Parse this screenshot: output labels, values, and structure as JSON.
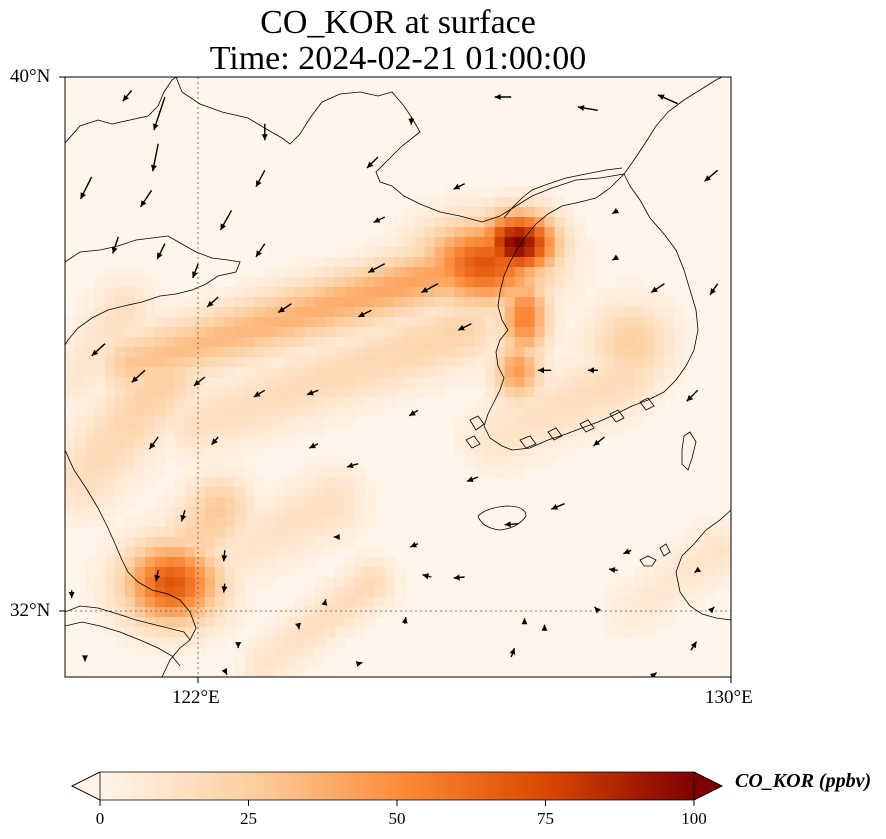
{
  "title": {
    "line1": "CO_KOR at surface",
    "line2": "Time: 2024-02-21 01:00:00"
  },
  "axes": {
    "y_ticks": [
      "40°N",
      "32°N"
    ],
    "x_ticks": [
      "122°E",
      "130°E"
    ],
    "lon_range": [
      120,
      130
    ],
    "lat_range": [
      31,
      40
    ],
    "gridline_lon": 122,
    "gridline_lat": 32
  },
  "colorbar": {
    "label": "CO_KOR (ppbv)",
    "ticks": [
      "0",
      "25",
      "50",
      "75",
      "100"
    ],
    "range": [
      0,
      100
    ],
    "extend": "both",
    "colormap": [
      "#fff5eb",
      "#fdd0a2",
      "#fd8d3c",
      "#d94801",
      "#7f0000"
    ]
  },
  "chart_data": {
    "type": "heatmap",
    "variable": "CO_KOR",
    "units": "ppbv",
    "vmin": 0,
    "vmax": 100,
    "hotspots": [
      {
        "lon": 126.8,
        "lat": 37.5,
        "value": 100,
        "sx": 0.55,
        "sy": 0.45
      },
      {
        "lon": 126.3,
        "lat": 37.2,
        "value": 70,
        "sx": 0.9,
        "sy": 0.6
      },
      {
        "lon": 121.6,
        "lat": 32.4,
        "value": 70,
        "sx": 0.7,
        "sy": 0.6
      },
      {
        "lon": 126.9,
        "lat": 36.4,
        "value": 55,
        "sx": 0.35,
        "sy": 0.6
      },
      {
        "lon": 126.8,
        "lat": 35.6,
        "value": 45,
        "sx": 0.35,
        "sy": 0.45
      },
      {
        "lon": 128.5,
        "lat": 36.0,
        "value": 25,
        "sx": 0.6,
        "sy": 0.6
      }
    ],
    "plumes": [
      {
        "from": [
          126.5,
          37.3
        ],
        "to": [
          121.0,
          35.7
        ],
        "value": 45,
        "width": 0.45
      },
      {
        "from": [
          121.5,
          35.5
        ],
        "to": [
          120.3,
          34.0
        ],
        "value": 25,
        "width": 0.55
      },
      {
        "from": [
          126.0,
          36.2
        ],
        "to": [
          122.0,
          34.8
        ],
        "value": 22,
        "width": 0.5
      },
      {
        "from": [
          122.3,
          33.5
        ],
        "to": [
          121.5,
          32.5
        ],
        "value": 28,
        "width": 0.5
      },
      {
        "from": [
          128.4,
          35.5
        ],
        "to": [
          126.5,
          34.6
        ],
        "value": 18,
        "width": 0.5
      },
      {
        "from": [
          124.0,
          33.6
        ],
        "to": [
          122.0,
          32.6
        ],
        "value": 15,
        "width": 0.5
      },
      {
        "from": [
          124.6,
          32.4
        ],
        "to": [
          123.0,
          31.2
        ],
        "value": 18,
        "width": 0.35
      },
      {
        "from": [
          120.9,
          36.5
        ],
        "to": [
          120.2,
          35.5
        ],
        "value": 15,
        "width": 0.45
      },
      {
        "from": [
          129.8,
          32.9
        ],
        "to": [
          128.5,
          32.0
        ],
        "value": 12,
        "width": 0.4
      }
    ],
    "wind_vectors": [
      {
        "lon": 121.5,
        "lat": 39.7,
        "u": -1.0,
        "v": -3.0
      },
      {
        "lon": 121.4,
        "lat": 39.0,
        "u": -0.5,
        "v": -2.5
      },
      {
        "lon": 121.0,
        "lat": 39.8,
        "u": -0.8,
        "v": -1.0
      },
      {
        "lon": 123.0,
        "lat": 39.3,
        "u": 0.0,
        "v": -1.5
      },
      {
        "lon": 125.2,
        "lat": 39.4,
        "u": 0.0,
        "v": -0.7
      },
      {
        "lon": 126.7,
        "lat": 39.7,
        "u": -1.5,
        "v": 0.0
      },
      {
        "lon": 128.0,
        "lat": 39.5,
        "u": -1.8,
        "v": 0.3
      },
      {
        "lon": 129.2,
        "lat": 39.6,
        "u": -1.8,
        "v": 0.8
      },
      {
        "lon": 120.4,
        "lat": 38.5,
        "u": -1.0,
        "v": -2.0
      },
      {
        "lon": 121.3,
        "lat": 38.3,
        "u": -1.0,
        "v": -1.5
      },
      {
        "lon": 123.0,
        "lat": 38.6,
        "u": -0.8,
        "v": -1.5
      },
      {
        "lon": 122.5,
        "lat": 38.0,
        "u": -1.0,
        "v": -1.8
      },
      {
        "lon": 124.7,
        "lat": 38.8,
        "u": -1.0,
        "v": -1.0
      },
      {
        "lon": 124.8,
        "lat": 37.9,
        "u": -1.0,
        "v": -0.5
      },
      {
        "lon": 126.0,
        "lat": 38.4,
        "u": -1.0,
        "v": -0.5
      },
      {
        "lon": 128.3,
        "lat": 38.0,
        "u": -0.5,
        "v": -0.3
      },
      {
        "lon": 129.8,
        "lat": 38.6,
        "u": -1.2,
        "v": -1.0
      },
      {
        "lon": 120.8,
        "lat": 37.6,
        "u": -0.5,
        "v": -1.5
      },
      {
        "lon": 121.5,
        "lat": 37.5,
        "u": -0.7,
        "v": -1.4
      },
      {
        "lon": 122.0,
        "lat": 37.2,
        "u": -0.5,
        "v": -1.3
      },
      {
        "lon": 123.0,
        "lat": 37.5,
        "u": -0.8,
        "v": -1.2
      },
      {
        "lon": 124.8,
        "lat": 37.2,
        "u": -1.5,
        "v": -0.8
      },
      {
        "lon": 125.6,
        "lat": 36.9,
        "u": -1.5,
        "v": -0.8
      },
      {
        "lon": 128.3,
        "lat": 37.3,
        "u": -0.5,
        "v": -0.3
      },
      {
        "lon": 129.0,
        "lat": 36.9,
        "u": -1.2,
        "v": -0.8
      },
      {
        "lon": 129.8,
        "lat": 36.9,
        "u": -0.7,
        "v": -1.0
      },
      {
        "lon": 122.3,
        "lat": 36.7,
        "u": -1.0,
        "v": -0.9
      },
      {
        "lon": 123.4,
        "lat": 36.6,
        "u": -1.2,
        "v": -0.8
      },
      {
        "lon": 124.6,
        "lat": 36.5,
        "u": -1.2,
        "v": -0.6
      },
      {
        "lon": 126.1,
        "lat": 36.3,
        "u": -1.2,
        "v": -0.6
      },
      {
        "lon": 120.6,
        "lat": 36.0,
        "u": -1.2,
        "v": -1.1
      },
      {
        "lon": 121.2,
        "lat": 35.6,
        "u": -1.2,
        "v": -1.1
      },
      {
        "lon": 122.1,
        "lat": 35.5,
        "u": -1.0,
        "v": -0.8
      },
      {
        "lon": 123.0,
        "lat": 35.3,
        "u": -1.0,
        "v": -0.6
      },
      {
        "lon": 123.8,
        "lat": 35.3,
        "u": -1.0,
        "v": -0.4
      },
      {
        "lon": 125.3,
        "lat": 35.0,
        "u": -0.8,
        "v": -0.5
      },
      {
        "lon": 127.3,
        "lat": 35.6,
        "u": -1.2,
        "v": 0.0
      },
      {
        "lon": 128.0,
        "lat": 35.6,
        "u": -0.9,
        "v": 0.0
      },
      {
        "lon": 129.5,
        "lat": 35.3,
        "u": -1.0,
        "v": -1.0
      },
      {
        "lon": 121.4,
        "lat": 34.6,
        "u": -0.8,
        "v": -1.1
      },
      {
        "lon": 122.3,
        "lat": 34.6,
        "u": -0.6,
        "v": -0.7
      },
      {
        "lon": 123.8,
        "lat": 34.5,
        "u": -0.8,
        "v": -0.4
      },
      {
        "lon": 124.4,
        "lat": 34.2,
        "u": -1.0,
        "v": -0.3
      },
      {
        "lon": 126.2,
        "lat": 34.0,
        "u": -1.0,
        "v": -0.4
      },
      {
        "lon": 128.1,
        "lat": 34.6,
        "u": -1.0,
        "v": -0.8
      },
      {
        "lon": 127.5,
        "lat": 33.6,
        "u": -1.2,
        "v": -0.5
      },
      {
        "lon": 126.8,
        "lat": 33.3,
        "u": -1.2,
        "v": -0.1
      },
      {
        "lon": 121.8,
        "lat": 33.5,
        "u": -0.3,
        "v": -1.0
      },
      {
        "lon": 124.1,
        "lat": 33.1,
        "u": -0.4,
        "v": 0.0
      },
      {
        "lon": 125.3,
        "lat": 33.0,
        "u": -0.7,
        "v": -0.3
      },
      {
        "lon": 121.4,
        "lat": 32.6,
        "u": -0.2,
        "v": -1.0
      },
      {
        "lon": 122.4,
        "lat": 32.9,
        "u": -0.1,
        "v": -1.0
      },
      {
        "lon": 122.4,
        "lat": 32.4,
        "u": -0.1,
        "v": -0.8
      },
      {
        "lon": 125.5,
        "lat": 32.5,
        "u": -0.8,
        "v": 0.2
      },
      {
        "lon": 126.0,
        "lat": 32.5,
        "u": -1.0,
        "v": -0.1
      },
      {
        "lon": 128.3,
        "lat": 32.6,
        "u": -0.8,
        "v": 0.1
      },
      {
        "lon": 128.5,
        "lat": 32.9,
        "u": -0.7,
        "v": -0.3
      },
      {
        "lon": 129.5,
        "lat": 32.6,
        "u": -0.3,
        "v": -0.2
      },
      {
        "lon": 120.1,
        "lat": 32.3,
        "u": 0.0,
        "v": -0.7
      },
      {
        "lon": 123.5,
        "lat": 31.8,
        "u": 0.1,
        "v": -0.5
      },
      {
        "lon": 123.9,
        "lat": 32.1,
        "u": 0.1,
        "v": 0.4
      },
      {
        "lon": 125.1,
        "lat": 31.8,
        "u": 0.1,
        "v": 0.6
      },
      {
        "lon": 126.9,
        "lat": 31.8,
        "u": 0.0,
        "v": 0.5
      },
      {
        "lon": 127.2,
        "lat": 31.7,
        "u": 0.0,
        "v": 0.5
      },
      {
        "lon": 128.0,
        "lat": 32.0,
        "u": -0.3,
        "v": 0.3
      },
      {
        "lon": 129.7,
        "lat": 32.0,
        "u": 0.3,
        "v": 0.3
      },
      {
        "lon": 122.6,
        "lat": 31.5,
        "u": 0.0,
        "v": -0.4
      },
      {
        "lon": 122.4,
        "lat": 31.1,
        "u": 0.2,
        "v": -0.4
      },
      {
        "lon": 124.4,
        "lat": 31.2,
        "u": 0.4,
        "v": 0.1
      },
      {
        "lon": 126.7,
        "lat": 31.3,
        "u": 0.3,
        "v": 0.8
      },
      {
        "lon": 128.8,
        "lat": 31.0,
        "u": 0.5,
        "v": 0.4
      },
      {
        "lon": 129.4,
        "lat": 31.4,
        "u": 0.5,
        "v": 0.8
      },
      {
        "lon": 120.3,
        "lat": 31.3,
        "u": 0.0,
        "v": -0.4
      }
    ]
  }
}
